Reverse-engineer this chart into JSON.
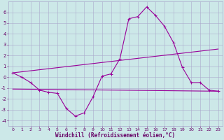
{
  "xlabel": "Windchill (Refroidissement éolien,°C)",
  "xlim": [
    -0.5,
    23.5
  ],
  "ylim": [
    -4.5,
    7.0
  ],
  "yticks": [
    -4,
    -3,
    -2,
    -1,
    0,
    1,
    2,
    3,
    4,
    5,
    6
  ],
  "xticks": [
    0,
    1,
    2,
    3,
    4,
    5,
    6,
    7,
    8,
    9,
    10,
    11,
    12,
    13,
    14,
    15,
    16,
    17,
    18,
    19,
    20,
    21,
    22,
    23
  ],
  "background_color": "#cce8e8",
  "grid_color": "#aaaacc",
  "line_color": "#990099",
  "series1_x": [
    0,
    1,
    2,
    3,
    4,
    5,
    6,
    7,
    8,
    9,
    10,
    11,
    12,
    13,
    14,
    15,
    16,
    17,
    18,
    19,
    20,
    21,
    22,
    23
  ],
  "series1_y": [
    0.4,
    0.0,
    -0.5,
    -1.2,
    -1.4,
    -1.5,
    -2.9,
    -3.6,
    -3.3,
    -1.8,
    0.1,
    0.3,
    1.7,
    5.4,
    5.6,
    6.5,
    5.7,
    4.7,
    3.2,
    0.9,
    -0.5,
    -0.5,
    -1.2,
    -1.3
  ],
  "series2_x": [
    0,
    23
  ],
  "series2_y": [
    0.4,
    2.6
  ],
  "series3_x": [
    0,
    23
  ],
  "series3_y": [
    -1.1,
    -1.3
  ]
}
